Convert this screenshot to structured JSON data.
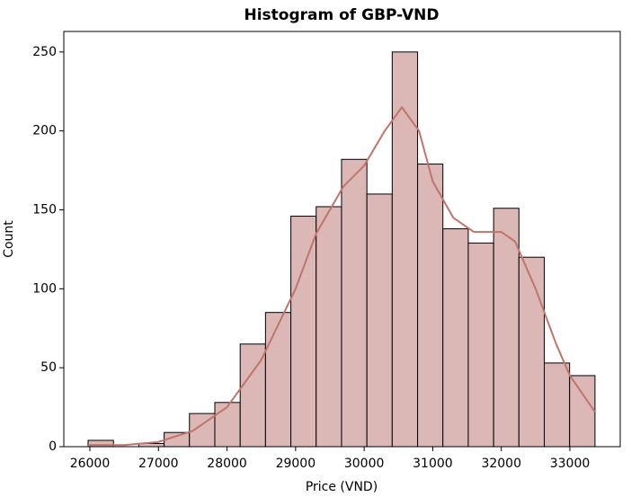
{
  "chart_data": {
    "type": "histogram",
    "title": "Histogram of GBP-VND",
    "x_label": "Price (VND)",
    "y_label": "Count",
    "bins": [
      25974,
      26344,
      26713,
      27083,
      27452,
      27822,
      28192,
      28561,
      28931,
      29300,
      29670,
      30040,
      30409,
      30779,
      31148,
      31518,
      31888,
      32257,
      32627,
      32996,
      33366
    ],
    "values": [
      4,
      0,
      2,
      9,
      21,
      28,
      65,
      85,
      146,
      152,
      182,
      160,
      250,
      179,
      138,
      129,
      151,
      120,
      53,
      45
    ],
    "color": "#dbb7b5",
    "edgecolor": "#000000",
    "kde": {
      "color": "#c0746b",
      "x": [
        25974,
        26500,
        27000,
        27500,
        28000,
        28500,
        29000,
        29300,
        29700,
        30000,
        30300,
        30550,
        30800,
        31000,
        31300,
        31600,
        32000,
        32200,
        32500,
        32800,
        33000,
        33366
      ],
      "values": [
        1,
        1,
        3,
        10,
        25,
        55,
        100,
        135,
        165,
        178,
        200,
        215,
        200,
        168,
        145,
        136,
        136,
        130,
        100,
        65,
        45,
        22
      ]
    },
    "xlim": [
      25620,
      33734
    ],
    "ylim": [
      0,
      263
    ],
    "xticks": [
      26000,
      27000,
      28000,
      29000,
      30000,
      31000,
      32000,
      33000
    ],
    "yticks": [
      0,
      50,
      100,
      150,
      200,
      250
    ]
  }
}
